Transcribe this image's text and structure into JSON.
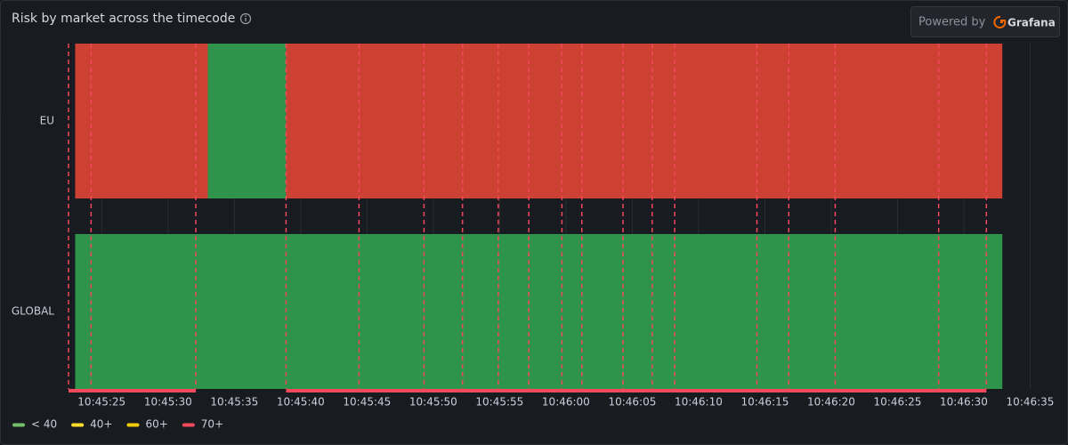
{
  "chart_data": {
    "type": "state-timeline",
    "title": "Risk by market across the timecode",
    "categories": [
      "EU",
      "GLOBAL"
    ],
    "rows": [
      {
        "segments": [
          {
            "start": 23.0,
            "end": 33.0,
            "color": "#cc4132"
          },
          {
            "start": 33.0,
            "end": 38.9,
            "color": "#2e944b"
          },
          {
            "start": 38.9,
            "end": 92.9,
            "color": "#cc4132"
          }
        ]
      },
      {
        "segments": [
          {
            "start": 23.0,
            "end": 92.9,
            "color": "#2e944b"
          }
        ]
      }
    ],
    "xlim": [
      22.5,
      95.1
    ],
    "xticks": [
      {
        "value": 25,
        "label": "10:45:25"
      },
      {
        "value": 30,
        "label": "10:45:30"
      },
      {
        "value": 35,
        "label": "10:45:35"
      },
      {
        "value": 40,
        "label": "10:45:40"
      },
      {
        "value": 45,
        "label": "10:45:45"
      },
      {
        "value": 50,
        "label": "10:45:50"
      },
      {
        "value": 55,
        "label": "10:45:55"
      },
      {
        "value": 60,
        "label": "10:46:00"
      },
      {
        "value": 65,
        "label": "10:46:05"
      },
      {
        "value": 70,
        "label": "10:46:10"
      },
      {
        "value": 75,
        "label": "10:46:15"
      },
      {
        "value": 80,
        "label": "10:46:20"
      },
      {
        "value": 85,
        "label": "10:46:25"
      },
      {
        "value": 90,
        "label": "10:46:30"
      },
      {
        "value": 95,
        "label": "10:46:35"
      }
    ],
    "grid": true,
    "annotations": [
      22.5,
      24.2,
      32.1,
      38.9,
      44.4,
      49.3,
      52.2,
      54.9,
      57.2,
      59.7,
      61.2,
      64.3,
      66.5,
      68.2,
      74.4,
      76.8,
      80.3,
      88.1,
      91.7
    ],
    "annotation_regions": [
      [
        22.5,
        32.1
      ],
      [
        38.9,
        91.7
      ]
    ],
    "annotation_color": "#f2495c",
    "legend": [
      {
        "name": "< 40",
        "color": "#73bf69"
      },
      {
        "name": "40+",
        "color": "#fade2a"
      },
      {
        "name": "60+",
        "color": "#f2cc0c"
      },
      {
        "name": "70+",
        "color": "#f2495c"
      }
    ]
  },
  "badge": {
    "text": "Powered by",
    "brand": "Grafana"
  }
}
